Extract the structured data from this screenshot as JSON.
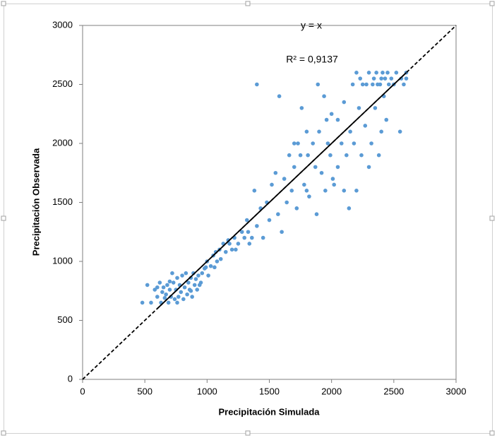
{
  "chart_data": {
    "type": "scatter",
    "xlabel": "Precipitación Simulada",
    "ylabel": "Precipitación  Observada",
    "xlim": [
      0,
      3000
    ],
    "xticks": [
      0,
      500,
      1000,
      1500,
      2000,
      2500,
      3000
    ],
    "ylim": [
      0,
      3000
    ],
    "yticks": [
      0,
      500,
      1000,
      1500,
      2000,
      2500,
      3000
    ],
    "color": "#5b9bd5",
    "reference_line": {
      "x": [
        0,
        3000
      ],
      "y": [
        0,
        3000
      ]
    },
    "trendline": {
      "x": [
        600,
        2600
      ],
      "y": [
        600,
        2600
      ],
      "equation": "y = x",
      "r2": "R² = 0,9137"
    },
    "x": [
      480,
      520,
      550,
      580,
      600,
      620,
      630,
      640,
      650,
      660,
      670,
      680,
      690,
      700,
      710,
      720,
      730,
      740,
      750,
      760,
      770,
      780,
      790,
      800,
      810,
      820,
      830,
      840,
      850,
      860,
      870,
      880,
      890,
      900,
      910,
      920,
      930,
      950,
      960,
      980,
      1000,
      1010,
      1030,
      1050,
      1060,
      1080,
      1100,
      1110,
      1130,
      1150,
      1170,
      1200,
      1220,
      1250,
      1280,
      1300,
      1320,
      1340,
      1360,
      1380,
      1400,
      1400,
      1430,
      1450,
      1480,
      1500,
      1520,
      1550,
      1570,
      1580,
      1600,
      1620,
      1640,
      1660,
      1680,
      1700,
      1700,
      1720,
      1750,
      1760,
      1780,
      1800,
      1800,
      1820,
      1850,
      1870,
      1880,
      1890,
      1900,
      1920,
      1940,
      1950,
      1970,
      1990,
      2000,
      2020,
      2050,
      2050,
      2080,
      2100,
      2100,
      2120,
      2140,
      2150,
      2170,
      2180,
      2200,
      2200,
      2220,
      2240,
      2250,
      2270,
      2300,
      2300,
      2320,
      2340,
      2350,
      2370,
      2380,
      2400,
      2400,
      2420,
      2440,
      2450,
      2460,
      2480,
      2500,
      2520,
      2550,
      2560,
      2580,
      2600,
      2600,
      2230,
      2280,
      2330,
      2360,
      2390,
      2410,
      2430,
      1730,
      1810,
      1960,
      2010,
      1330,
      1180,
      1230,
      1070,
      990,
      870,
      760,
      700,
      600,
      940
    ],
    "y": [
      650,
      800,
      650,
      760,
      700,
      820,
      650,
      740,
      780,
      690,
      720,
      800,
      650,
      760,
      700,
      900,
      820,
      680,
      760,
      860,
      700,
      800,
      740,
      880,
      680,
      780,
      900,
      720,
      820,
      760,
      860,
      700,
      900,
      800,
      850,
      760,
      880,
      820,
      900,
      940,
      1000,
      880,
      960,
      1050,
      950,
      1000,
      1100,
      1020,
      1150,
      1080,
      1180,
      1100,
      1200,
      1150,
      1250,
      1200,
      1350,
      1150,
      1200,
      1600,
      1300,
      2500,
      1450,
      1200,
      1500,
      1350,
      1650,
      1750,
      1400,
      2400,
      1250,
      1700,
      1500,
      1900,
      1600,
      2000,
      1800,
      1450,
      1900,
      2300,
      1650,
      2100,
      1600,
      1550,
      2000,
      1800,
      1400,
      2500,
      2100,
      1750,
      2400,
      1600,
      2000,
      1900,
      2250,
      1650,
      1800,
      2200,
      2000,
      2350,
      1600,
      1900,
      1450,
      2100,
      2500,
      2000,
      2600,
      1600,
      2300,
      1900,
      2500,
      2150,
      2600,
      1800,
      2000,
      2550,
      2300,
      2500,
      1900,
      2550,
      2100,
      2400,
      2200,
      2600,
      2500,
      2550,
      2500,
      2600,
      2100,
      2550,
      2500,
      2600,
      2550,
      2550,
      2500,
      2500,
      2600,
      2500,
      2600,
      2550,
      2000,
      1900,
      2200,
      1700,
      1250,
      1150,
      1100,
      1080,
      950,
      750,
      650,
      830,
      780,
      800
    ]
  }
}
